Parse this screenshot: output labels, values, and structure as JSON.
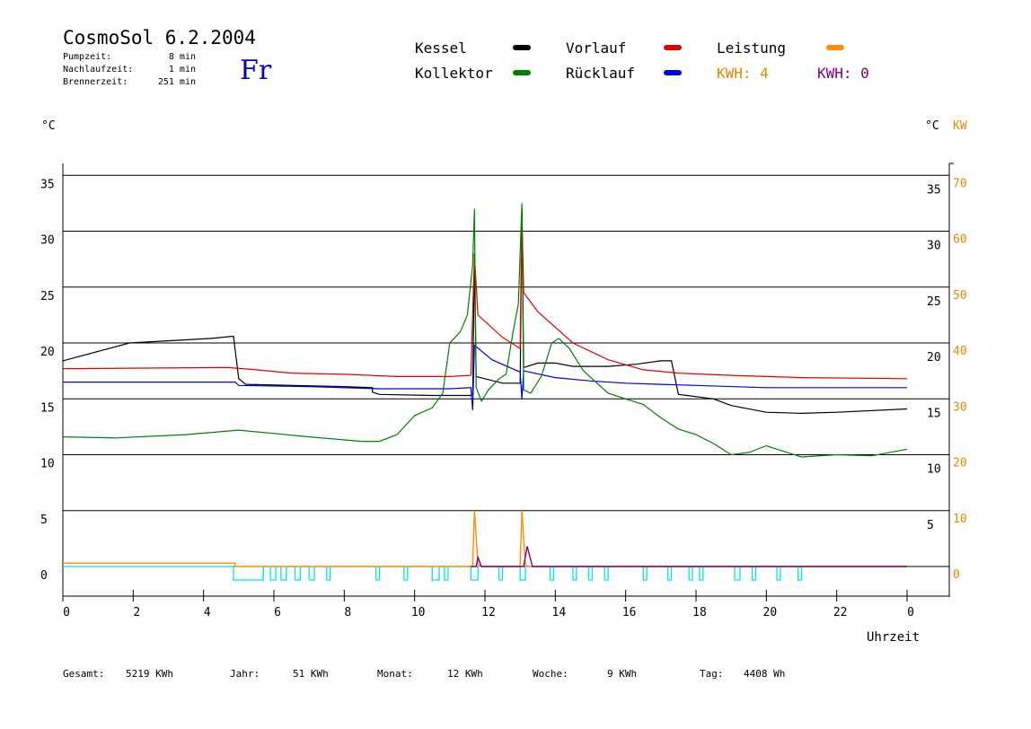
{
  "header": {
    "title": "CosmoSol 6.2.2004",
    "day": "Fr",
    "info": [
      {
        "label": "Pumpzeit:",
        "value": "8 min"
      },
      {
        "label": "Nachlaufzeit:",
        "value": "1 min"
      },
      {
        "label": "Brennerzeit:",
        "value": "251 min"
      }
    ]
  },
  "legend": [
    {
      "name": "Kessel",
      "color": "#000000"
    },
    {
      "name": "Kollektor",
      "color": "#008000"
    },
    {
      "name": "Vorlauf",
      "color": "#e00000"
    },
    {
      "name": "Rücklauf",
      "color": "#0000e0"
    },
    {
      "name": "Leistung",
      "color": "#ff8c00"
    }
  ],
  "kwh": [
    {
      "text": "KWH: 4",
      "color": "#e08a00"
    },
    {
      "text": "KWH: 0",
      "color": "#800080"
    }
  ],
  "units": {
    "left": "°C",
    "right_c": "°C",
    "right_kw": "KW"
  },
  "footer": [
    {
      "label": "Gesamt:",
      "value": "5219 KWh"
    },
    {
      "label": "Jahr:",
      "value": "51 KWh"
    },
    {
      "label": "Monat:",
      "value": "12 KWh"
    },
    {
      "label": "Woche:",
      "value": "9 KWh"
    },
    {
      "label": "Tag:",
      "value": "4408 Wh"
    }
  ],
  "chart_data": {
    "type": "line",
    "xlabel": "Uhrzeit",
    "x_ticks": [
      "0",
      "2",
      "4",
      "6",
      "8",
      "10",
      "12",
      "14",
      "16",
      "18",
      "20",
      "22",
      "0"
    ],
    "xlim": [
      0,
      24
    ],
    "ylim": [
      0,
      35
    ],
    "y_ticks": [
      "0",
      "5",
      "10",
      "15",
      "20",
      "25",
      "30",
      "35"
    ],
    "y_ticks_right_c": [
      "5",
      "10",
      "15",
      "20",
      "25",
      "30",
      "35"
    ],
    "y_ticks_right_kw": [
      "0",
      "10",
      "20",
      "30",
      "40",
      "50",
      "60",
      "70"
    ],
    "grid": "horizontal",
    "series": [
      {
        "name": "Kessel",
        "color": "#000000",
        "points": [
          [
            0,
            18.4
          ],
          [
            1.9,
            20
          ],
          [
            4.2,
            20.4
          ],
          [
            4.85,
            20.6
          ],
          [
            5.0,
            16.8
          ],
          [
            5.2,
            16.3
          ],
          [
            8.0,
            16.1
          ],
          [
            8.8,
            16.0
          ],
          [
            8.8,
            15.6
          ],
          [
            9.0,
            15.4
          ],
          [
            10.5,
            15.3
          ],
          [
            11.6,
            15.3
          ],
          [
            11.65,
            15.4
          ],
          [
            11.7,
            28.0
          ],
          [
            11.75,
            17.0
          ],
          [
            12.5,
            16.4
          ],
          [
            13.0,
            16.4
          ],
          [
            13.05,
            32.0
          ],
          [
            13.1,
            17.8
          ],
          [
            13.5,
            18.2
          ],
          [
            14.0,
            18.2
          ],
          [
            14.5,
            17.9
          ],
          [
            15.5,
            17.9
          ],
          [
            16.3,
            18.1
          ],
          [
            17.0,
            18.4
          ],
          [
            17.3,
            18.4
          ],
          [
            17.5,
            15.4
          ],
          [
            18.5,
            15.0
          ],
          [
            19.0,
            14.4
          ],
          [
            20.0,
            13.8
          ],
          [
            21.0,
            13.7
          ],
          [
            22.0,
            13.8
          ],
          [
            24.0,
            14.1
          ]
        ]
      },
      {
        "name": "Vorlauf",
        "color": "#e00000",
        "points": [
          [
            0,
            17.7
          ],
          [
            4.7,
            17.8
          ],
          [
            5.5,
            17.6
          ],
          [
            6.5,
            17.3
          ],
          [
            8.0,
            17.2
          ],
          [
            9.5,
            17.0
          ],
          [
            11.0,
            17.0
          ],
          [
            11.6,
            17.1
          ],
          [
            11.7,
            27.8
          ],
          [
            11.8,
            22.5
          ],
          [
            12.5,
            20.5
          ],
          [
            13.0,
            19.5
          ],
          [
            13.05,
            32.0
          ],
          [
            13.1,
            24.5
          ],
          [
            13.5,
            22.8
          ],
          [
            14.5,
            20.0
          ],
          [
            15.5,
            18.5
          ],
          [
            16.5,
            17.6
          ],
          [
            17.5,
            17.3
          ],
          [
            19.0,
            17.1
          ],
          [
            21.0,
            16.9
          ],
          [
            24.0,
            16.8
          ]
        ]
      },
      {
        "name": "Rücklauf",
        "color": "#0000e0",
        "points": [
          [
            0,
            16.5
          ],
          [
            4.9,
            16.5
          ],
          [
            5.0,
            16.2
          ],
          [
            7.0,
            16.1
          ],
          [
            9.0,
            15.9
          ],
          [
            11.0,
            15.9
          ],
          [
            11.6,
            16.0
          ],
          [
            11.65,
            14.0
          ],
          [
            11.7,
            19.8
          ],
          [
            12.2,
            18.5
          ],
          [
            13.0,
            17.4
          ],
          [
            13.05,
            15.0
          ],
          [
            13.1,
            17.5
          ],
          [
            14.0,
            16.9
          ],
          [
            15.0,
            16.6
          ],
          [
            16.0,
            16.4
          ],
          [
            17.0,
            16.3
          ],
          [
            18.0,
            16.2
          ],
          [
            20.0,
            16.0
          ],
          [
            22.0,
            16.0
          ],
          [
            24.0,
            16.0
          ]
        ]
      },
      {
        "name": "Kollektor",
        "color": "#008000",
        "points": [
          [
            0,
            11.6
          ],
          [
            1.5,
            11.5
          ],
          [
            3.5,
            11.8
          ],
          [
            5.0,
            12.2
          ],
          [
            6.0,
            11.9
          ],
          [
            7.0,
            11.6
          ],
          [
            8.5,
            11.2
          ],
          [
            9.0,
            11.2
          ],
          [
            9.5,
            11.8
          ],
          [
            10.0,
            13.5
          ],
          [
            10.5,
            14.2
          ],
          [
            10.8,
            15.5
          ],
          [
            11.0,
            20.0
          ],
          [
            11.3,
            21.0
          ],
          [
            11.5,
            22.5
          ],
          [
            11.65,
            27.0
          ],
          [
            11.7,
            32.0
          ],
          [
            11.75,
            16.0
          ],
          [
            11.9,
            14.8
          ],
          [
            12.1,
            15.8
          ],
          [
            12.4,
            16.8
          ],
          [
            12.6,
            17.2
          ],
          [
            12.8,
            21.0
          ],
          [
            12.95,
            23.5
          ],
          [
            13.05,
            32.5
          ],
          [
            13.1,
            15.8
          ],
          [
            13.3,
            15.5
          ],
          [
            13.6,
            17.0
          ],
          [
            13.9,
            20.0
          ],
          [
            14.1,
            20.4
          ],
          [
            14.4,
            19.5
          ],
          [
            14.8,
            17.5
          ],
          [
            15.5,
            15.5
          ],
          [
            16.0,
            15.0
          ],
          [
            16.5,
            14.5
          ],
          [
            17.0,
            13.3
          ],
          [
            17.5,
            12.3
          ],
          [
            18.0,
            11.8
          ],
          [
            18.5,
            11.0
          ],
          [
            19.0,
            10.0
          ],
          [
            19.5,
            10.2
          ],
          [
            20.0,
            10.8
          ],
          [
            20.5,
            10.3
          ],
          [
            21.0,
            9.8
          ],
          [
            22.0,
            10.0
          ],
          [
            23.0,
            9.9
          ],
          [
            24.0,
            10.5
          ]
        ]
      }
    ],
    "power_series": [
      {
        "name": "Leistung",
        "color": "#ff8c00",
        "points": [
          [
            0,
            0.3
          ],
          [
            4.9,
            0.3
          ],
          [
            4.9,
            0
          ],
          [
            11.65,
            0
          ],
          [
            11.7,
            5.0
          ],
          [
            11.8,
            0.2
          ],
          [
            11.9,
            0
          ],
          [
            13.0,
            0
          ],
          [
            13.05,
            5.0
          ],
          [
            13.15,
            0.2
          ],
          [
            13.2,
            0
          ],
          [
            24,
            0
          ]
        ]
      },
      {
        "name": "KWH 0",
        "color": "#800080",
        "points": [
          [
            11.6,
            0
          ],
          [
            11.75,
            0
          ],
          [
            11.8,
            0.8
          ],
          [
            11.9,
            0
          ],
          [
            13.1,
            0
          ],
          [
            13.2,
            1.8
          ],
          [
            13.35,
            0
          ],
          [
            24,
            0
          ]
        ]
      }
    ],
    "pump_pulses": [
      [
        4.85,
        5.7
      ],
      [
        5.9,
        6.05
      ],
      [
        6.2,
        6.35
      ],
      [
        6.6,
        6.75
      ],
      [
        7.0,
        7.15
      ],
      [
        7.5,
        7.6
      ],
      [
        8.9,
        9.0
      ],
      [
        9.7,
        9.8
      ],
      [
        10.5,
        10.7
      ],
      [
        10.85,
        10.95
      ],
      [
        11.6,
        11.8
      ],
      [
        12.4,
        12.5
      ],
      [
        13.0,
        13.15
      ],
      [
        13.85,
        13.95
      ],
      [
        14.5,
        14.6
      ],
      [
        14.95,
        15.05
      ],
      [
        15.4,
        15.5
      ],
      [
        16.5,
        16.6
      ],
      [
        17.2,
        17.3
      ],
      [
        17.8,
        17.9
      ],
      [
        18.1,
        18.2
      ],
      [
        19.1,
        19.25
      ],
      [
        19.6,
        19.7
      ],
      [
        20.3,
        20.4
      ],
      [
        20.9,
        21.0
      ]
    ]
  }
}
